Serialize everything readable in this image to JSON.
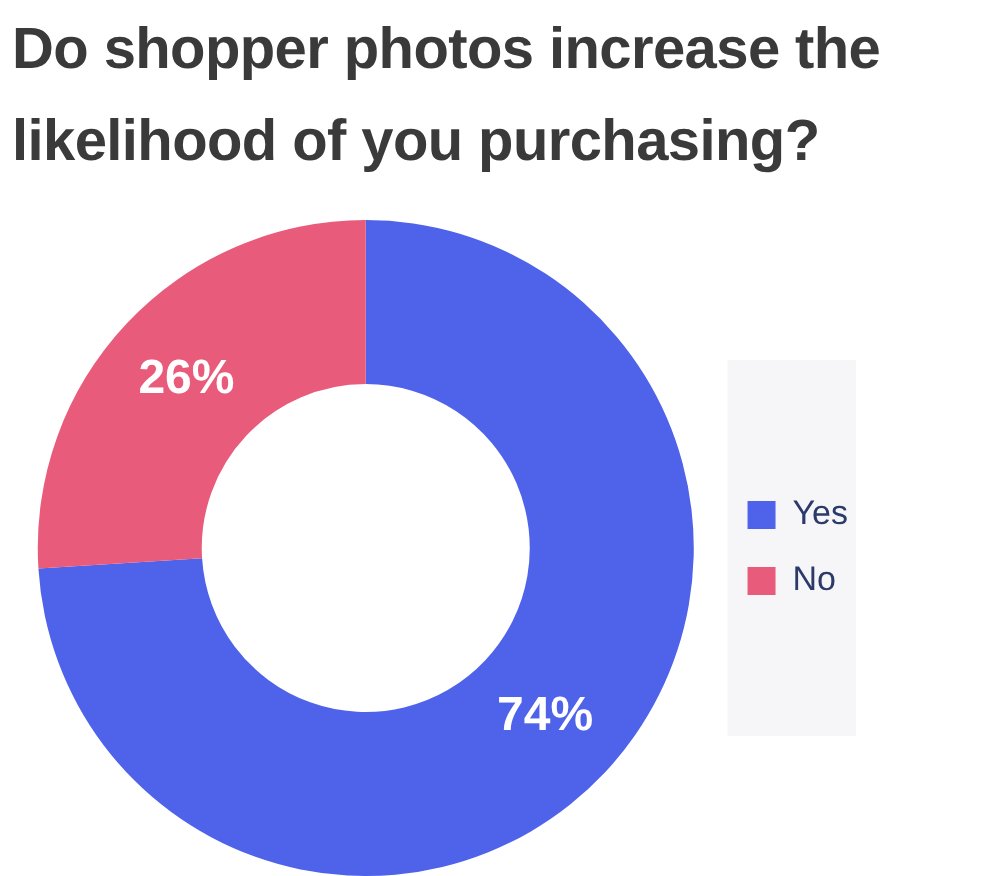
{
  "chart_data": {
    "type": "donut",
    "title": "Do shopper photos increase the likelihood of you purchasing?",
    "categories": [
      "Yes",
      "No"
    ],
    "values": [
      74,
      26
    ],
    "colors": [
      "#4f62ea",
      "#e95b7b"
    ],
    "value_labels": [
      "74%",
      "26%"
    ],
    "legend": "right"
  }
}
